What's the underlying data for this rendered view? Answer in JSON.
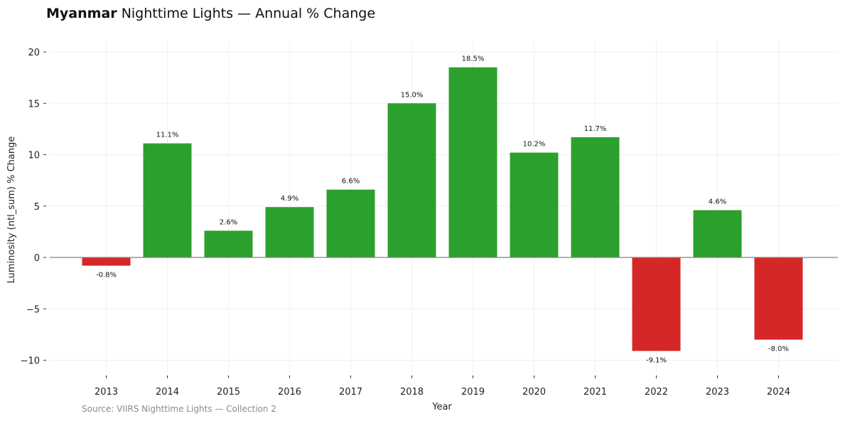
{
  "title": {
    "country": "Myanmar",
    "rest": "Nighttime Lights — Annual % Change"
  },
  "source": "Source: VIIRS Nighttime Lights — Collection 2",
  "colors": {
    "positive": "#2ca02c",
    "negative": "#d62728",
    "zero_line": "#808080",
    "grid": "#f0f0f0"
  },
  "chart_data": {
    "type": "bar",
    "categories": [
      "2013",
      "2014",
      "2015",
      "2016",
      "2017",
      "2018",
      "2019",
      "2020",
      "2021",
      "2022",
      "2023",
      "2024"
    ],
    "values": [
      -0.8,
      11.1,
      2.6,
      4.9,
      6.6,
      15.0,
      18.5,
      10.2,
      11.7,
      -9.1,
      4.6,
      -8.0
    ],
    "data_labels": [
      "-0.8%",
      "11.1%",
      "2.6%",
      "4.9%",
      "6.6%",
      "15.0%",
      "18.5%",
      "10.2%",
      "11.7%",
      "-9.1%",
      "4.6%",
      "-8.0%"
    ],
    "xlabel": "Year",
    "ylabel": "Luminosity (ntl_sum) % Change",
    "ylim": [
      -11.5,
      21.5
    ],
    "yticks": [
      20,
      15,
      10,
      5,
      0,
      -5,
      -10
    ],
    "ytick_labels": [
      "20",
      "15",
      "10",
      "5",
      "0",
      "−5",
      "−10"
    ],
    "grid": true,
    "legend": "none"
  }
}
